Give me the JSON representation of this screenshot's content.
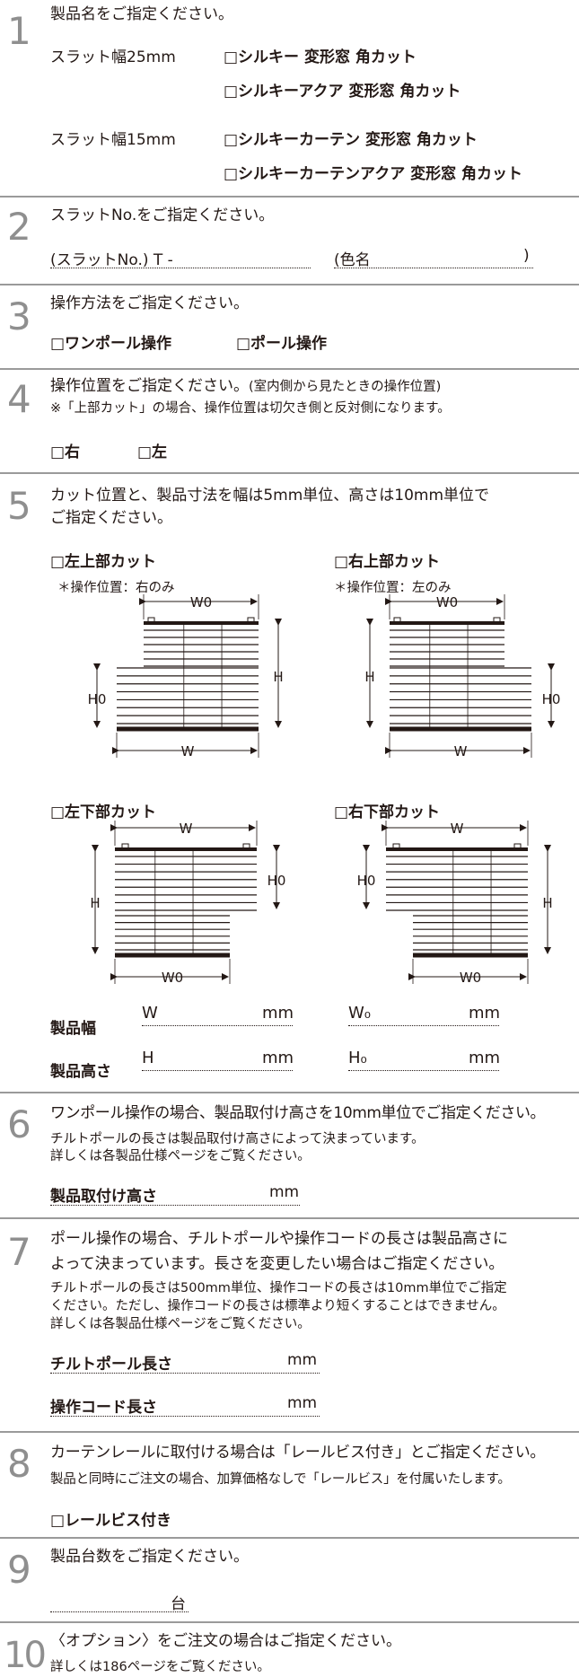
{
  "s1": {
    "num": "1",
    "head": "製品名をご指定ください。",
    "slat25": "スラット幅25mm",
    "opt1": "□シルキー 変形窓 角カット",
    "opt2": "□シルキーアクア 変形窓 角カット",
    "slat15": "スラット幅15mm",
    "opt3": "□シルキーカーテン 変形窓 角カット",
    "opt4": "□シルキーカーテンアクア 変形窓 角カット"
  },
  "s2": {
    "num": "2",
    "head": "スラットNo.をご指定ください。",
    "slat_label": "(スラットNo.) T -",
    "color_label": "(色名",
    "color_close": ")"
  },
  "s3": {
    "num": "3",
    "head": "操作方法をご指定ください。",
    "opt1": "□ワンポール操作",
    "opt2": "□ポール操作"
  },
  "s4": {
    "num": "4",
    "head": "操作位置をご指定ください。",
    "head_note": "(室内側から見たときの操作位置)",
    "note": "※「上部カット」の場合、操作位置は切欠き側と反対側になります。",
    "opt_right": "□右",
    "opt_left": "□左"
  },
  "s5": {
    "num": "5",
    "head1": "カット位置と、製品寸法を幅は5mm単位、高さは10mm単位で",
    "head2": "ご指定ください。",
    "upper_left": "□左上部カット",
    "upper_right": "□右上部カット",
    "lower_left": "□左下部カット",
    "lower_right": "□右下部カット",
    "op_right_only": "＊操作位置：右のみ",
    "op_left_only": "＊操作位置：左のみ",
    "dim_w": "W",
    "dim_w0": "W0",
    "dim_h": "H",
    "dim_h0": "H0",
    "width_label": "製品幅",
    "height_label": "製品高さ",
    "field_w": "W",
    "field_w0": "W₀",
    "field_h": "H",
    "field_h0": "H₀",
    "unit": "mm"
  },
  "s6": {
    "num": "6",
    "head": "ワンポール操作の場合、製品取付け高さを10mm単位でご指定ください。",
    "sub1": "チルトポールの長さは製品取付け高さによって決まっています。",
    "sub2": "詳しくは各製品仕様ページをご覧ください。",
    "field": "製品取付け高さ",
    "unit": "mm"
  },
  "s7": {
    "num": "7",
    "head1": "ポール操作の場合、チルトポールや操作コードの長さは製品高さに",
    "head2": "よって決まっています。長さを変更したい場合はご指定ください。",
    "sub1": "チルトポールの長さは500mm単位、操作コードの長さは10mm単位でご指定",
    "sub2": "ください。ただし、操作コードの長さは標準より短くすることはできません。",
    "sub3": "詳しくは各製品仕様ページをご覧ください。",
    "field1": "チルトポール長さ",
    "field2": "操作コード長さ",
    "unit": "mm"
  },
  "s8": {
    "num": "8",
    "head": "カーテンレールに取付ける場合は「レールビス付き」とご指定ください。",
    "sub": "製品と同時にご注文の場合、加算価格なしで「レールビス」を付属いたします。",
    "opt": "□レールビス付き"
  },
  "s9": {
    "num": "9",
    "head": "製品台数をご指定ください。",
    "unit": "台"
  },
  "s10": {
    "num": "10",
    "head": "〈オプション〉をご注文の場合はご指定ください。",
    "sub": "詳しくは186ページをご覧ください。"
  }
}
